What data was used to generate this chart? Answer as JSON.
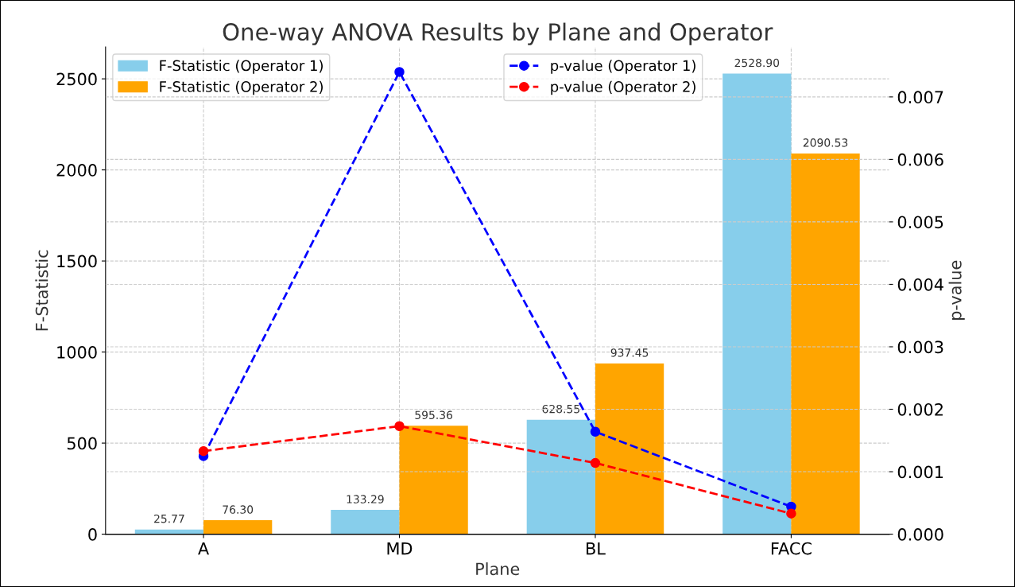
{
  "chart_data": {
    "type": "bar",
    "title": "One-way ANOVA Results by Plane and Operator",
    "xlabel": "Plane",
    "ylabel": "F-Statistic",
    "y2label": "p-value",
    "categories": [
      "A",
      "MD",
      "BL",
      "FACC"
    ],
    "series": [
      {
        "name": "F-Statistic (Operator 1)",
        "color": "#87ceeb",
        "values": [
          25.77,
          133.29,
          628.55,
          2528.9
        ],
        "value_labels": [
          "25.77",
          "133.29",
          "628.55",
          "2528.90"
        ]
      },
      {
        "name": "F-Statistic (Operator 2)",
        "color": "#ffa500",
        "values": [
          76.3,
          595.36,
          937.45,
          2090.53
        ],
        "value_labels": [
          "76.30",
          "595.36",
          "937.45",
          "2090.53"
        ]
      },
      {
        "name": "p-value (Operator 1)",
        "type": "line",
        "axis": "y2",
        "color": "#0000ff",
        "values": [
          0.00125,
          0.0074,
          0.00164,
          0.00044
        ]
      },
      {
        "name": "p-value (Operator 2)",
        "type": "line",
        "axis": "y2",
        "color": "#ff0000",
        "values": [
          0.00133,
          0.00173,
          0.00114,
          0.00033
        ]
      }
    ],
    "ylim": [
      0,
      2675
    ],
    "yticks": [
      0,
      500,
      1000,
      1500,
      2000,
      2500
    ],
    "y2lim": [
      0,
      0.0078
    ],
    "y2ticks": [
      {
        "value": 0,
        "label": "0.000"
      },
      {
        "value": 0.001,
        "label": "0.001"
      },
      {
        "value": 0.002,
        "label": "0.002"
      },
      {
        "value": 0.003,
        "label": "0.003"
      },
      {
        "value": 0.004,
        "label": "0.004"
      },
      {
        "value": 0.005,
        "label": "0.005"
      },
      {
        "value": 0.006,
        "label": "0.006"
      },
      {
        "value": 0.007,
        "label": "0.007"
      }
    ],
    "grid": true,
    "legend": "top",
    "marker": "circle",
    "line_style": "dashed"
  }
}
